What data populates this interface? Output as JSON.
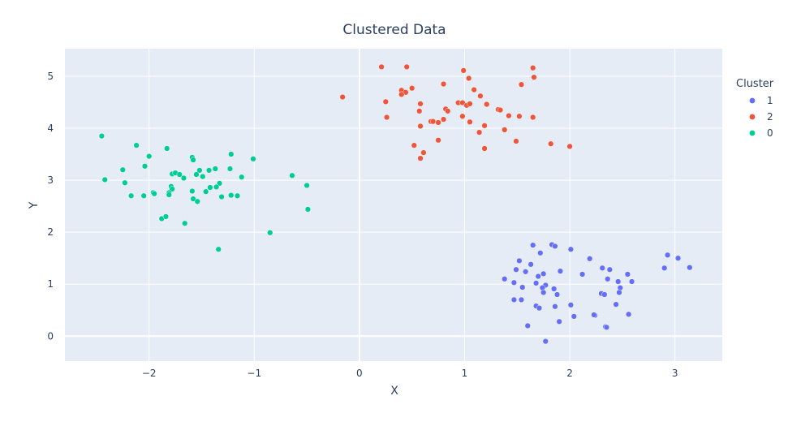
{
  "chart_data": {
    "type": "scatter",
    "title": "Clustered Data",
    "xlabel": "X",
    "ylabel": "Y",
    "xlim": [
      -2.8,
      3.45
    ],
    "ylim": [
      -0.48,
      5.53
    ],
    "xticks": [
      -2,
      -1,
      0,
      1,
      2,
      3
    ],
    "xtick_labels": [
      "−2",
      "−1",
      "0",
      "1",
      "2",
      "3"
    ],
    "yticks": [
      0,
      1,
      2,
      3,
      4,
      5
    ],
    "ytick_labels": [
      "0",
      "1",
      "2",
      "3",
      "4",
      "5"
    ],
    "grid": true,
    "plot_background": "#e5ecf6",
    "legend_title": "Cluster",
    "legend_position": "right",
    "series": [
      {
        "name": "1",
        "color": "#636efa",
        "points": [
          [
            1.65,
            1.75
          ],
          [
            1.72,
            1.6
          ],
          [
            1.83,
            1.76
          ],
          [
            1.86,
            1.73
          ],
          [
            2.01,
            1.67
          ],
          [
            2.19,
            1.49
          ],
          [
            1.52,
            1.45
          ],
          [
            1.49,
            1.28
          ],
          [
            1.58,
            1.24
          ],
          [
            1.63,
            1.38
          ],
          [
            1.7,
            1.15
          ],
          [
            1.75,
            1.2
          ],
          [
            1.38,
            1.1
          ],
          [
            1.47,
            1.03
          ],
          [
            1.55,
            0.94
          ],
          [
            1.68,
            1.02
          ],
          [
            1.77,
            0.98
          ],
          [
            1.91,
            1.25
          ],
          [
            2.12,
            1.19
          ],
          [
            2.31,
            1.31
          ],
          [
            2.38,
            1.28
          ],
          [
            2.36,
            1.1
          ],
          [
            2.46,
            1.05
          ],
          [
            2.55,
            1.19
          ],
          [
            2.59,
            1.05
          ],
          [
            2.48,
            0.93
          ],
          [
            2.47,
            0.84
          ],
          [
            1.74,
            0.93
          ],
          [
            1.75,
            0.84
          ],
          [
            1.85,
            0.91
          ],
          [
            1.88,
            0.8
          ],
          [
            1.47,
            0.7
          ],
          [
            1.54,
            0.7
          ],
          [
            1.68,
            0.58
          ],
          [
            1.71,
            0.54
          ],
          [
            1.86,
            0.57
          ],
          [
            2.01,
            0.6
          ],
          [
            2.04,
            0.38
          ],
          [
            2.24,
            0.4
          ],
          [
            2.3,
            0.82
          ],
          [
            2.33,
            0.8
          ],
          [
            2.44,
            0.61
          ],
          [
            2.56,
            0.42
          ],
          [
            1.6,
            0.2
          ],
          [
            1.9,
            0.28
          ],
          [
            2.34,
            0.18
          ],
          [
            2.35,
            0.17
          ],
          [
            1.77,
            -0.1
          ],
          [
            2.9,
            1.31
          ],
          [
            2.93,
            1.56
          ],
          [
            3.03,
            1.5
          ],
          [
            3.14,
            1.32
          ],
          [
            2.23,
            0.41
          ]
        ]
      },
      {
        "name": "2",
        "color": "#ef553b",
        "points": [
          [
            0.21,
            5.18
          ],
          [
            0.45,
            5.18
          ],
          [
            0.99,
            5.11
          ],
          [
            1.65,
            5.16
          ],
          [
            1.66,
            4.98
          ],
          [
            1.04,
            4.96
          ],
          [
            1.54,
            4.84
          ],
          [
            0.8,
            4.85
          ],
          [
            1.09,
            4.74
          ],
          [
            0.5,
            4.77
          ],
          [
            0.4,
            4.73
          ],
          [
            0.44,
            4.69
          ],
          [
            0.4,
            4.65
          ],
          [
            1.15,
            4.62
          ],
          [
            1.21,
            4.46
          ],
          [
            -0.16,
            4.6
          ],
          [
            0.25,
            4.51
          ],
          [
            0.58,
            4.47
          ],
          [
            0.94,
            4.49
          ],
          [
            0.98,
            4.49
          ],
          [
            1.02,
            4.44
          ],
          [
            1.05,
            4.47
          ],
          [
            0.82,
            4.37
          ],
          [
            0.84,
            4.33
          ],
          [
            0.57,
            4.33
          ],
          [
            1.32,
            4.36
          ],
          [
            1.34,
            4.35
          ],
          [
            1.42,
            4.24
          ],
          [
            1.52,
            4.23
          ],
          [
            1.65,
            4.21
          ],
          [
            0.26,
            4.21
          ],
          [
            0.98,
            4.23
          ],
          [
            0.8,
            4.17
          ],
          [
            0.68,
            4.13
          ],
          [
            0.7,
            4.13
          ],
          [
            0.75,
            4.11
          ],
          [
            1.05,
            4.12
          ],
          [
            0.58,
            4.04
          ],
          [
            1.19,
            4.05
          ],
          [
            1.38,
            3.97
          ],
          [
            1.14,
            3.92
          ],
          [
            0.75,
            3.77
          ],
          [
            1.49,
            3.75
          ],
          [
            0.52,
            3.67
          ],
          [
            1.19,
            3.61
          ],
          [
            0.61,
            3.53
          ],
          [
            0.58,
            3.42
          ],
          [
            1.82,
            3.7
          ],
          [
            2.0,
            3.65
          ]
        ]
      },
      {
        "name": "0",
        "color": "#00cc96",
        "points": [
          [
            -2.45,
            3.85
          ],
          [
            -2.12,
            3.67
          ],
          [
            -1.83,
            3.61
          ],
          [
            -2.0,
            3.46
          ],
          [
            -1.59,
            3.44
          ],
          [
            -1.58,
            3.39
          ],
          [
            -1.22,
            3.5
          ],
          [
            -1.01,
            3.41
          ],
          [
            -2.04,
            3.27
          ],
          [
            -2.25,
            3.2
          ],
          [
            -1.52,
            3.19
          ],
          [
            -1.43,
            3.19
          ],
          [
            -1.37,
            3.22
          ],
          [
            -1.23,
            3.22
          ],
          [
            -1.78,
            3.12
          ],
          [
            -1.75,
            3.14
          ],
          [
            -1.71,
            3.11
          ],
          [
            -1.55,
            3.11
          ],
          [
            -1.49,
            3.07
          ],
          [
            -1.12,
            3.06
          ],
          [
            -1.67,
            3.04
          ],
          [
            -2.42,
            3.01
          ],
          [
            -2.23,
            2.95
          ],
          [
            -1.33,
            2.94
          ],
          [
            -1.36,
            2.87
          ],
          [
            -1.42,
            2.86
          ],
          [
            -0.64,
            3.09
          ],
          [
            -0.5,
            2.9
          ],
          [
            -1.79,
            2.88
          ],
          [
            -1.78,
            2.83
          ],
          [
            -1.81,
            2.76
          ],
          [
            -1.81,
            2.72
          ],
          [
            -1.59,
            2.79
          ],
          [
            -1.46,
            2.78
          ],
          [
            -1.58,
            2.64
          ],
          [
            -1.54,
            2.59
          ],
          [
            -1.31,
            2.68
          ],
          [
            -1.22,
            2.71
          ],
          [
            -1.16,
            2.7
          ],
          [
            -1.96,
            2.76
          ],
          [
            -1.95,
            2.74
          ],
          [
            -2.17,
            2.7
          ],
          [
            -2.05,
            2.7
          ],
          [
            -1.88,
            2.26
          ],
          [
            -1.84,
            2.3
          ],
          [
            -1.66,
            2.17
          ],
          [
            -0.49,
            2.44
          ],
          [
            -0.85,
            1.99
          ],
          [
            -1.34,
            1.67
          ]
        ]
      }
    ]
  }
}
